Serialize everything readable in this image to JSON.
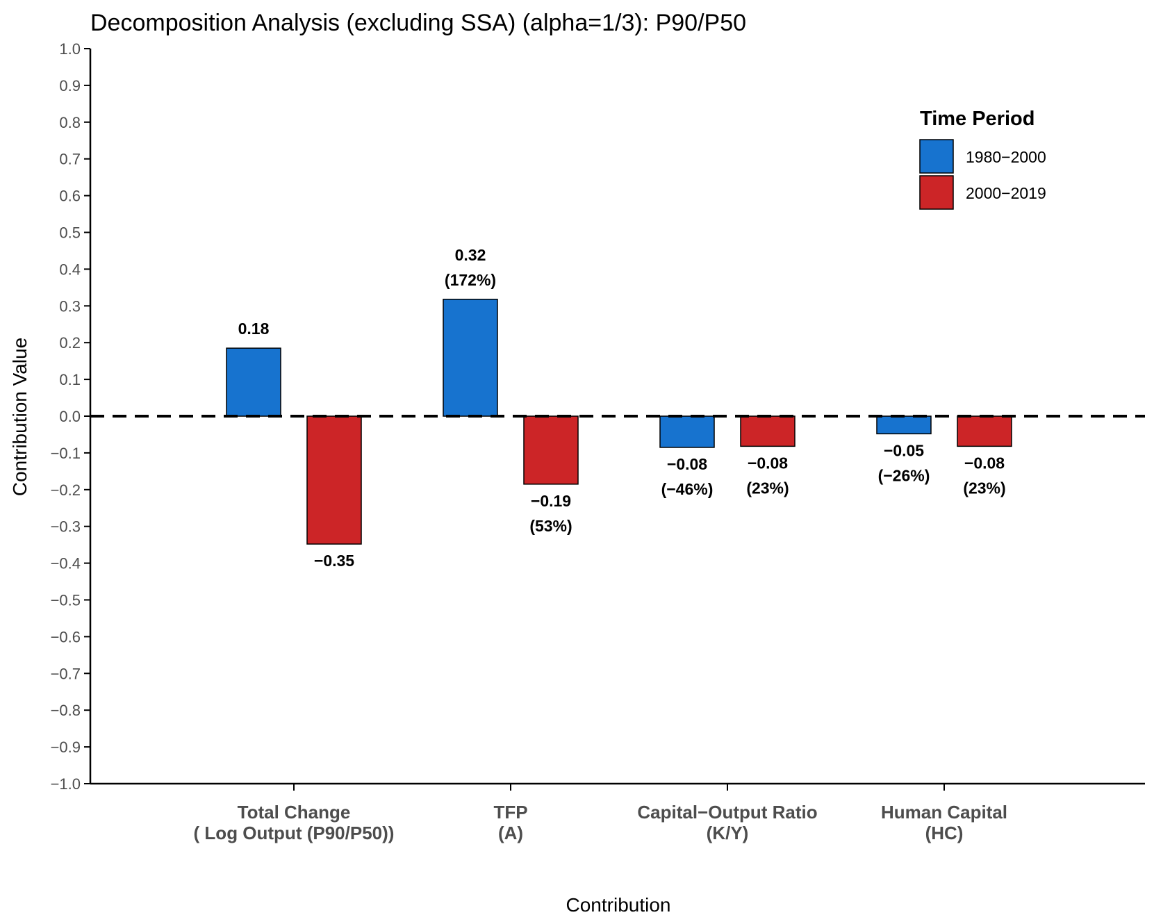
{
  "chart_data": {
    "type": "bar",
    "title": "Decomposition Analysis (excluding SSA) (alpha=1/3): P90/P50",
    "xlabel": "Contribution",
    "ylabel": "Contribution Value",
    "ylim": [
      -1.0,
      1.0
    ],
    "yticks": [
      "−1.0",
      "−0.9",
      "−0.8",
      "−0.7",
      "−0.6",
      "−0.5",
      "−0.4",
      "−0.3",
      "−0.2",
      "−0.1",
      "0.0",
      "0.1",
      "0.2",
      "0.3",
      "0.4",
      "0.5",
      "0.6",
      "0.7",
      "0.8",
      "0.9",
      "1.0"
    ],
    "categories": [
      [
        "Total Change",
        "( Log Output (P90/P50))"
      ],
      [
        "TFP",
        "(A)"
      ],
      [
        "Capital−Output Ratio",
        "(K/Y)"
      ],
      [
        "Human Capital",
        "(HC)"
      ]
    ],
    "series": [
      {
        "name": "1980−2000",
        "color": "#1773cf",
        "values": [
          0.185,
          0.318,
          -0.085,
          -0.048
        ],
        "labels": [
          [
            "0.18"
          ],
          [
            "0.32",
            "(172%)"
          ],
          [
            "−0.08",
            "(−46%)"
          ],
          [
            "−0.05",
            "(−26%)"
          ]
        ]
      },
      {
        "name": "2000−2019",
        "color": "#cc2527",
        "values": [
          -0.348,
          -0.185,
          -0.082,
          -0.082
        ],
        "labels": [
          [
            "−0.35"
          ],
          [
            "−0.19",
            "(53%)"
          ],
          [
            "−0.08",
            "(23%)"
          ],
          [
            "−0.08",
            "(23%)"
          ]
        ]
      }
    ],
    "reference_line": 0.0,
    "legend": {
      "title": "Time Period",
      "position": "top-right"
    },
    "grid": false
  }
}
